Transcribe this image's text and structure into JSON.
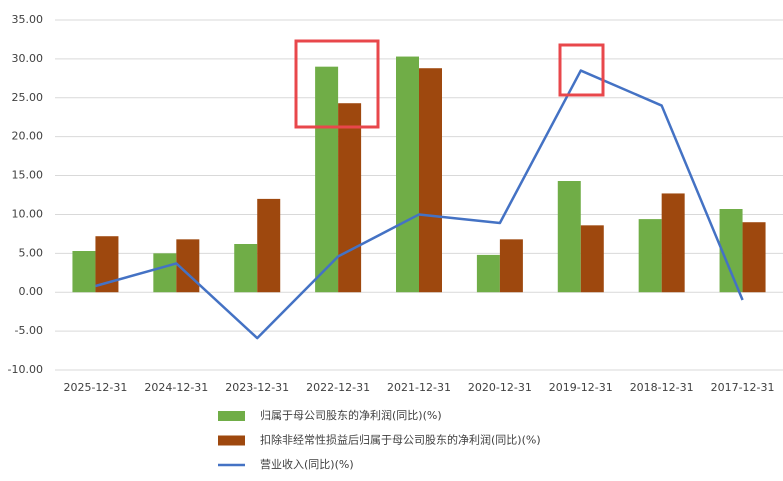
{
  "chart_data": {
    "type": "bar_line",
    "categories": [
      "2025-12-31",
      "2024-12-31",
      "2023-12-31",
      "2022-12-31",
      "2021-12-31",
      "2020-12-31",
      "2019-12-31",
      "2018-12-31",
      "2017-12-31"
    ],
    "series": [
      {
        "name": "归属于母公司股东的净利润(同比)(%)",
        "color": "#70ad47",
        "kind": "bar",
        "values": [
          5.3,
          5.0,
          6.2,
          29.0,
          30.3,
          4.8,
          14.3,
          9.4,
          10.7
        ]
      },
      {
        "name": "扣除非经常性损益后归属于母公司股东的净利润(同比)(%)",
        "color": "#9e480e",
        "kind": "bar",
        "values": [
          7.2,
          6.8,
          12.0,
          24.3,
          28.8,
          6.8,
          8.6,
          12.7,
          9.0
        ]
      },
      {
        "name": "营业收入(同比)(%)",
        "color": "#4472c4",
        "kind": "line",
        "values": [
          0.8,
          3.7,
          -5.9,
          4.6,
          10.0,
          8.9,
          28.5,
          24.0,
          -1.0
        ]
      }
    ],
    "ylim": [
      -10,
      35
    ],
    "yticks": [
      {
        "value": -10,
        "label": "-10.00"
      },
      {
        "value": -5,
        "label": "-5.00"
      },
      {
        "value": 0,
        "label": "0.00"
      },
      {
        "value": 5,
        "label": "5.00"
      },
      {
        "value": 10,
        "label": "10.00"
      },
      {
        "value": 15,
        "label": "15.00"
      },
      {
        "value": 20,
        "label": "20.00"
      },
      {
        "value": 25,
        "label": "25.00"
      },
      {
        "value": 30,
        "label": "30.00"
      },
      {
        "value": 35,
        "label": "35.00"
      }
    ],
    "grid": true
  }
}
